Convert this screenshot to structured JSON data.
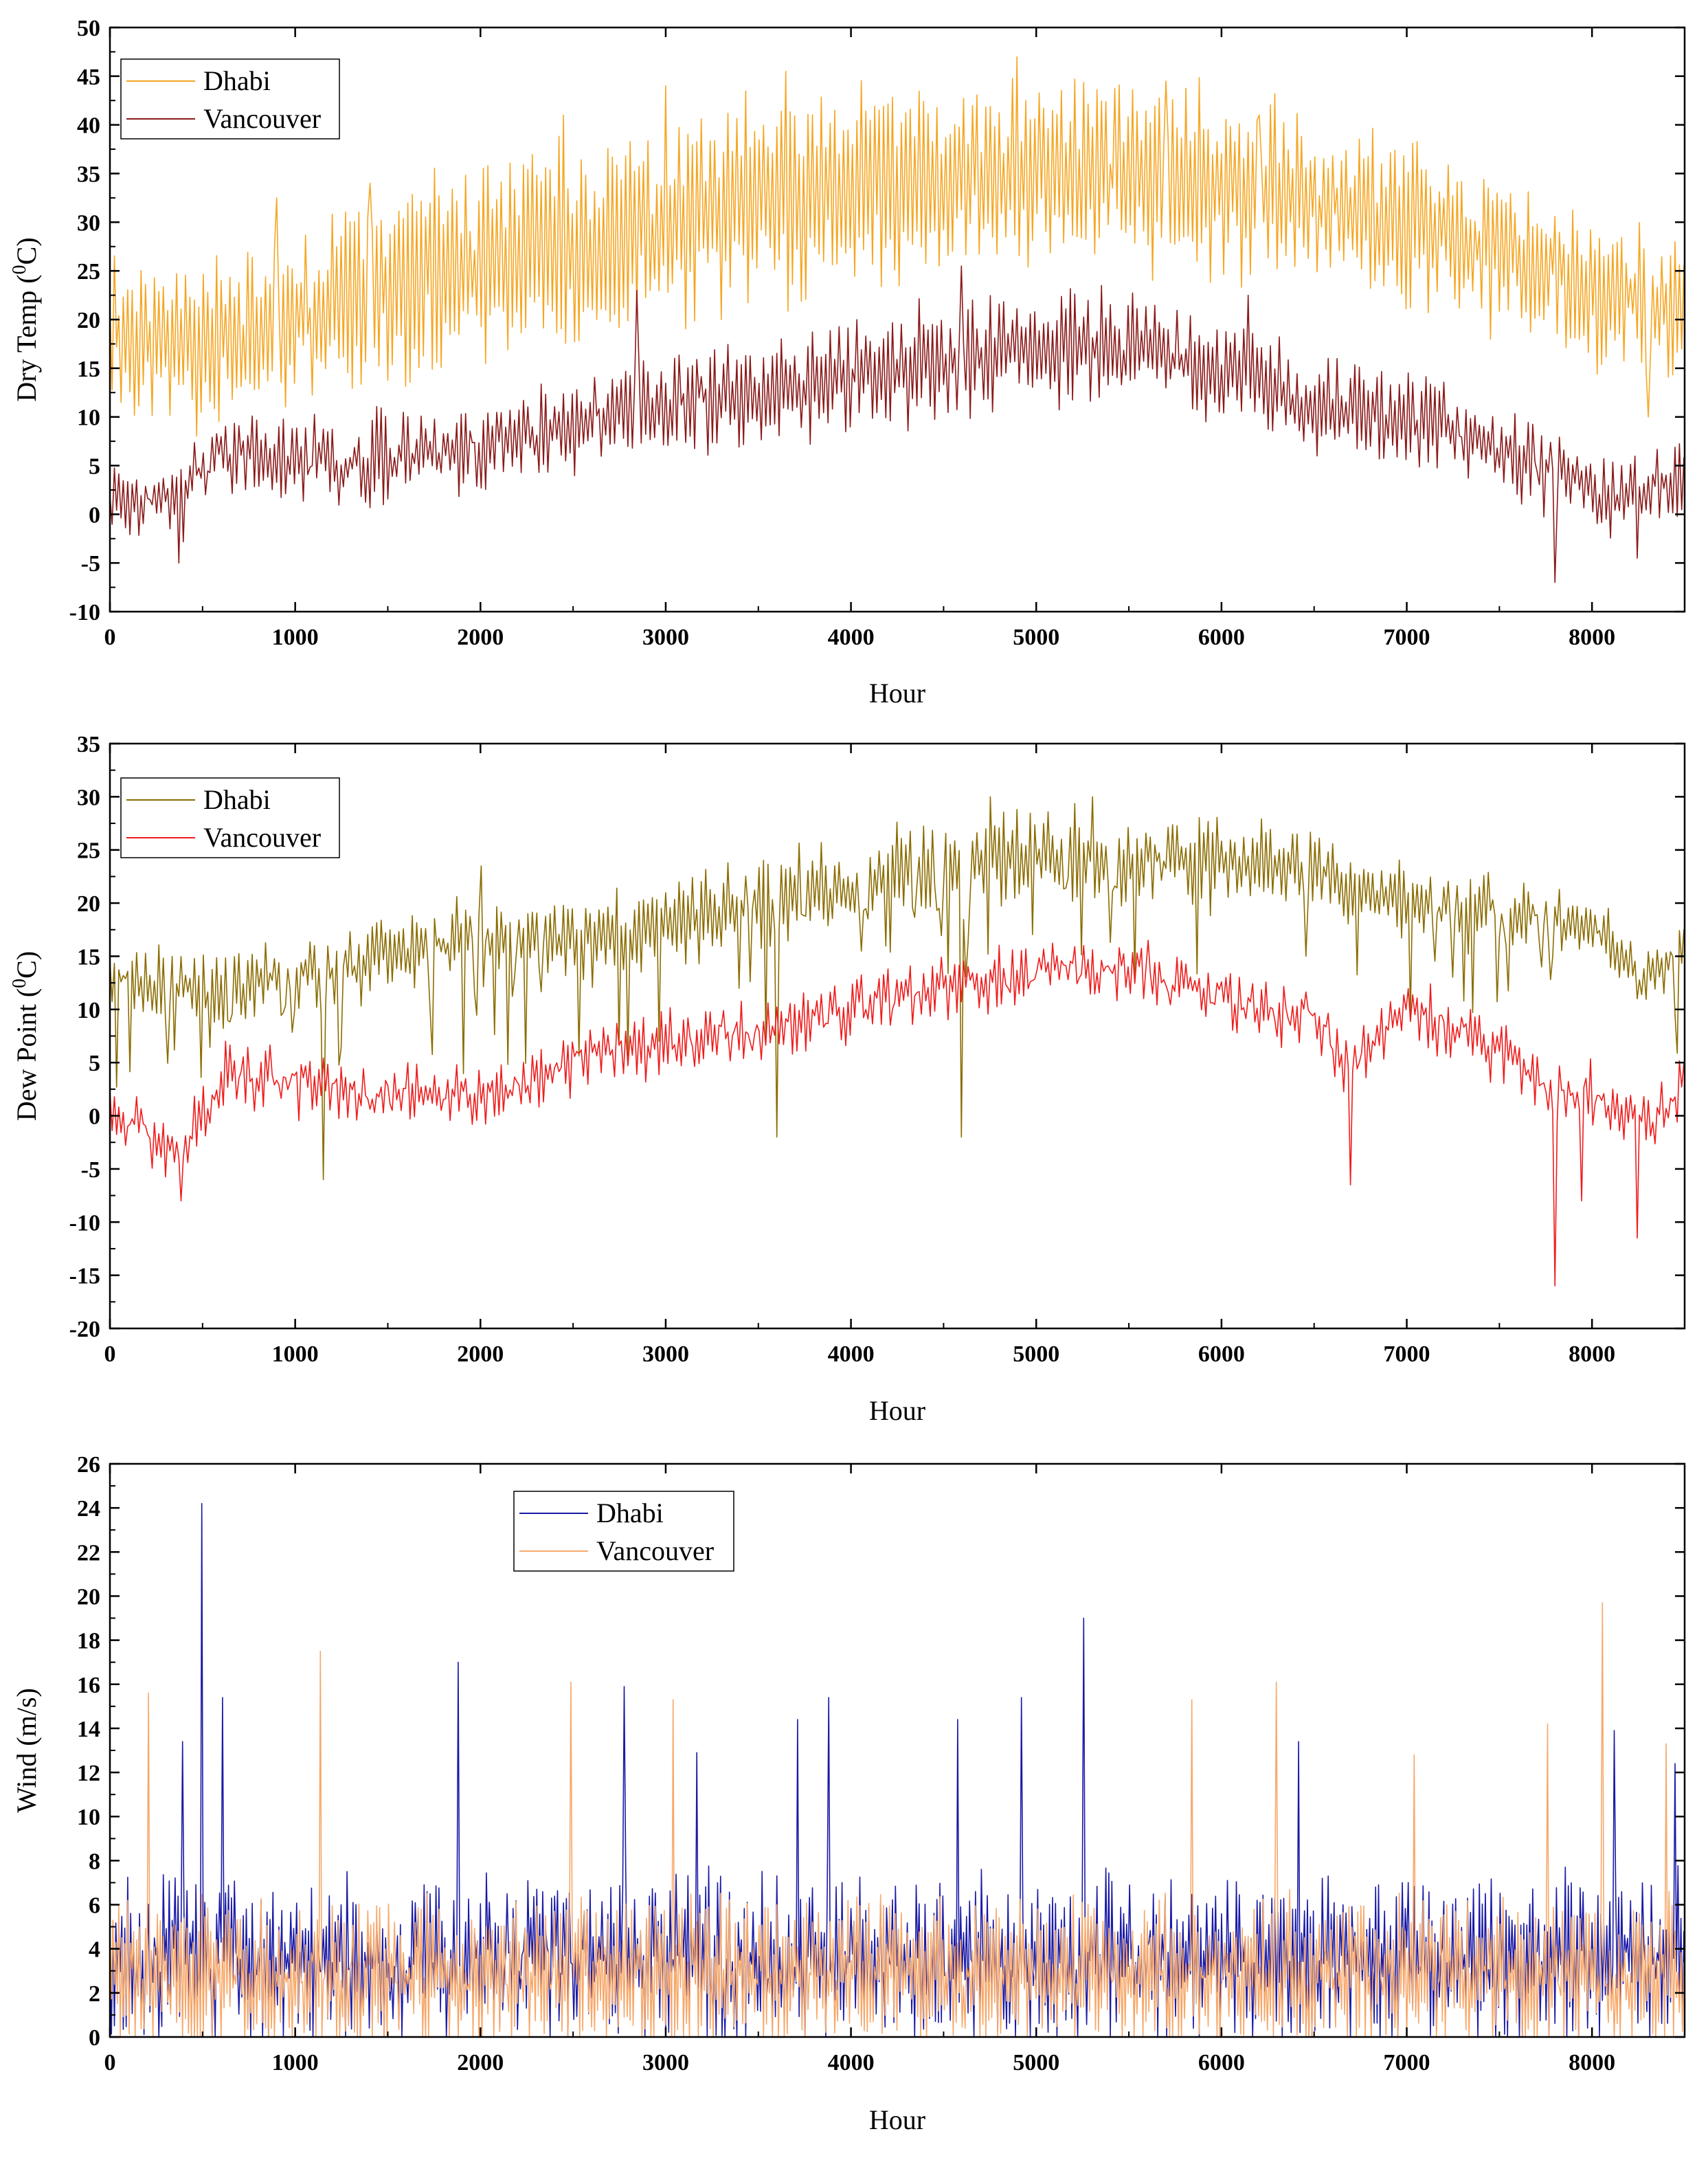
{
  "chart_data": [
    {
      "type": "line",
      "title": "",
      "xlabel": "Hour",
      "ylabel": "Dry Temp (0C)",
      "ylabel_parts": {
        "before": "Dry Temp (",
        "sup": "0",
        "after": "C)"
      },
      "xlim": [
        0,
        8500
      ],
      "ylim": [
        -10,
        50
      ],
      "xticks": [
        0,
        1000,
        2000,
        3000,
        4000,
        5000,
        6000,
        7000,
        8000
      ],
      "yticks": [
        -10,
        -5,
        0,
        5,
        10,
        15,
        20,
        25,
        30,
        35,
        40,
        45,
        50
      ],
      "legend_position": "top-left",
      "series": [
        {
          "name": "Dhabi",
          "color": "#f5a623",
          "baseline": [
            [
              0,
              19
            ],
            [
              500,
              18
            ],
            [
              1000,
              20
            ],
            [
              1500,
              23
            ],
            [
              2000,
              26
            ],
            [
              2500,
              28
            ],
            [
              3000,
              30
            ],
            [
              3500,
              32
            ],
            [
              4000,
              33
            ],
            [
              4500,
              34
            ],
            [
              5000,
              35
            ],
            [
              5500,
              35
            ],
            [
              6000,
              34
            ],
            [
              6500,
              32
            ],
            [
              7000,
              30
            ],
            [
              7500,
              27
            ],
            [
              8000,
              23
            ],
            [
              8500,
              21
            ]
          ],
          "amplitude": [
            [
              0,
              6
            ],
            [
              2000,
              8
            ],
            [
              4000,
              8
            ],
            [
              6000,
              7
            ],
            [
              8000,
              6
            ],
            [
              8500,
              6
            ]
          ],
          "noise": 2.5,
          "step": 12,
          "seed": 11,
          "spikes": [
            [
              4900,
              47
            ],
            [
              3650,
              45.5
            ],
            [
              2450,
              41
            ],
            [
              3000,
              44
            ],
            [
              5700,
              44.5
            ],
            [
              6200,
              41
            ],
            [
              1400,
              34
            ],
            [
              8300,
              10
            ],
            [
              8450,
              28
            ],
            [
              900,
              32.5
            ]
          ]
        },
        {
          "name": "Vancouver",
          "color": "#8b1a1a",
          "baseline": [
            [
              0,
              1
            ],
            [
              400,
              2
            ],
            [
              600,
              6
            ],
            [
              1000,
              5
            ],
            [
              1500,
              6
            ],
            [
              2000,
              7
            ],
            [
              2500,
              9
            ],
            [
              3000,
              12
            ],
            [
              3500,
              12
            ],
            [
              4000,
              14
            ],
            [
              4500,
              16
            ],
            [
              5000,
              17
            ],
            [
              5500,
              17
            ],
            [
              6000,
              15
            ],
            [
              6500,
              11
            ],
            [
              7000,
              10
            ],
            [
              7500,
              7
            ],
            [
              8000,
              2
            ],
            [
              8500,
              3
            ]
          ],
          "amplitude": [
            [
              0,
              2.5
            ],
            [
              2000,
              3
            ],
            [
              4000,
              4
            ],
            [
              6000,
              4
            ],
            [
              8000,
              2.5
            ],
            [
              8500,
              2.5
            ]
          ],
          "noise": 2.0,
          "step": 12,
          "seed": 23,
          "spikes": [
            [
              2850,
              23
            ],
            [
              4600,
              25.5
            ],
            [
              7800,
              -7
            ],
            [
              370,
              -5
            ],
            [
              8240,
              -4.5
            ],
            [
              6150,
              22.5
            ],
            [
              5350,
              23.5
            ]
          ]
        }
      ],
      "clamp": [
        -10,
        50
      ]
    },
    {
      "type": "line",
      "title": "",
      "xlabel": "Hour",
      "ylabel": "Dew Point (0C)",
      "ylabel_parts": {
        "before": "Dew Point (",
        "sup": "0",
        "after": "C)"
      },
      "xlim": [
        0,
        8500
      ],
      "ylim": [
        -20,
        35
      ],
      "xticks": [
        0,
        1000,
        2000,
        3000,
        4000,
        5000,
        6000,
        7000,
        8000
      ],
      "yticks": [
        -20,
        -15,
        -10,
        -5,
        0,
        5,
        10,
        15,
        20,
        25,
        30,
        35
      ],
      "legend_position": "top-left",
      "series": [
        {
          "name": "Dhabi",
          "color": "#8b6c00",
          "baseline": [
            [
              0,
              13
            ],
            [
              500,
              12
            ],
            [
              1000,
              13
            ],
            [
              1500,
              15
            ],
            [
              2000,
              17
            ],
            [
              2500,
              16
            ],
            [
              3000,
              18
            ],
            [
              3500,
              20
            ],
            [
              4000,
              22
            ],
            [
              4500,
              24
            ],
            [
              5000,
              25
            ],
            [
              5500,
              24
            ],
            [
              6000,
              24
            ],
            [
              6500,
              23
            ],
            [
              7000,
              20
            ],
            [
              7500,
              19
            ],
            [
              8000,
              18
            ],
            [
              8300,
              12
            ],
            [
              8500,
              17
            ]
          ],
          "amplitude": [
            [
              0,
              2
            ],
            [
              3000,
              3
            ],
            [
              5000,
              3
            ],
            [
              8500,
              2
            ]
          ],
          "noise": 1.5,
          "step": 12,
          "seed": 37,
          "dips": 0.12,
          "dip_depth": 10,
          "spikes": [
            [
              4600,
              -2
            ],
            [
              3600,
              -2
            ],
            [
              1150,
              -6
            ],
            [
              4750,
              30
            ],
            [
              5300,
              30
            ],
            [
              2000,
              23.5
            ]
          ]
        },
        {
          "name": "Vancouver",
          "color": "#ee1c1c",
          "baseline": [
            [
              0,
              0
            ],
            [
              400,
              -3
            ],
            [
              600,
              4
            ],
            [
              1000,
              3
            ],
            [
              1500,
              2
            ],
            [
              2000,
              2
            ],
            [
              2500,
              5
            ],
            [
              3000,
              7
            ],
            [
              3500,
              8
            ],
            [
              4000,
              10
            ],
            [
              4500,
              12
            ],
            [
              5000,
              13
            ],
            [
              5500,
              14
            ],
            [
              6000,
              11
            ],
            [
              6500,
              9
            ],
            [
              6700,
              4
            ],
            [
              7000,
              10
            ],
            [
              7500,
              6
            ],
            [
              7800,
              2
            ],
            [
              8000,
              2
            ],
            [
              8300,
              -1
            ],
            [
              8500,
              3
            ]
          ],
          "amplitude": [
            [
              0,
              1.5
            ],
            [
              8500,
              1.5
            ]
          ],
          "noise": 1.8,
          "step": 12,
          "seed": 51,
          "spikes": [
            [
              7800,
              -16
            ],
            [
              380,
              -8
            ],
            [
              6700,
              -6.5
            ],
            [
              8240,
              -11.5
            ],
            [
              5600,
              16.5
            ],
            [
              7950,
              -8
            ]
          ]
        }
      ],
      "clamp": [
        -20,
        35
      ]
    },
    {
      "type": "line",
      "title": "",
      "xlabel": "Hour",
      "ylabel": "Wind (m/s)",
      "ylabel_parts": {
        "before": "Wind (m/s)",
        "sup": "",
        "after": ""
      },
      "xlim": [
        0,
        8500
      ],
      "ylim": [
        0,
        26
      ],
      "xticks": [
        0,
        1000,
        2000,
        3000,
        4000,
        5000,
        6000,
        7000,
        8000
      ],
      "yticks": [
        0,
        2,
        4,
        6,
        8,
        10,
        12,
        14,
        16,
        18,
        20,
        22,
        24,
        26
      ],
      "legend_position": "top-center",
      "series": [
        {
          "name": "Dhabi",
          "color": "#1a1aa6",
          "baseline": [
            [
              0,
              3.5
            ],
            [
              8500,
              3.5
            ]
          ],
          "amplitude": [
            [
              0,
              2.2
            ],
            [
              8500,
              2.2
            ]
          ],
          "noise": 1.8,
          "step": 8,
          "seed": 67,
          "spikes": [
            [
              500,
              24.2
            ],
            [
              5260,
              19
            ],
            [
              1880,
              17
            ],
            [
              2780,
              15.9
            ],
            [
              3880,
              15.4
            ],
            [
              4920,
              15.4
            ],
            [
              610,
              15.4
            ],
            [
              3710,
              14.4
            ],
            [
              4580,
              14.4
            ],
            [
              8120,
              13.9
            ],
            [
              6420,
              13.4
            ],
            [
              390,
              13.4
            ],
            [
              3170,
              12.9
            ],
            [
              8450,
              12.4
            ]
          ]
        },
        {
          "name": "Vancouver",
          "color": "#f7a86a",
          "baseline": [
            [
              0,
              2.8
            ],
            [
              8500,
              2.8
            ]
          ],
          "amplitude": [
            [
              0,
              2
            ],
            [
              8500,
              2
            ]
          ],
          "noise": 1.6,
          "step": 8,
          "seed": 83,
          "spikes": [
            [
              8060,
              19.7
            ],
            [
              1140,
              17.5
            ],
            [
              2490,
              16.1
            ],
            [
              6300,
              16.1
            ],
            [
              210,
              15.6
            ],
            [
              3040,
              15.3
            ],
            [
              5840,
              15.3
            ],
            [
              7760,
              14.2
            ],
            [
              7040,
              12.8
            ],
            [
              8400,
              13.3
            ]
          ]
        }
      ],
      "clamp": [
        0,
        26
      ]
    }
  ]
}
